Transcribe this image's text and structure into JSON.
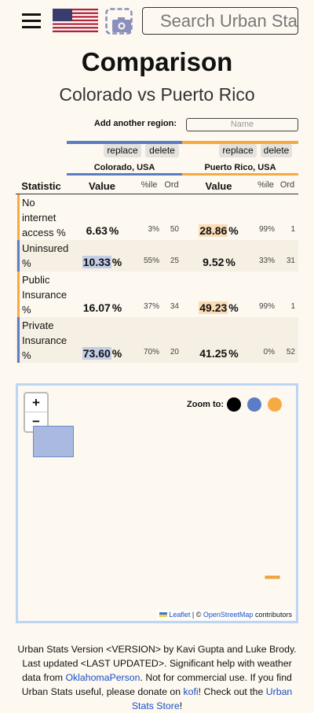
{
  "header": {
    "search_placeholder": "Search Urban Stats"
  },
  "title": "Comparison",
  "subtitle": "Colorado vs Puerto Rico",
  "add_region": {
    "label": "Add another region:",
    "placeholder": "Name"
  },
  "regions": [
    {
      "name": "Colorado, USA",
      "color": "#5a7dc5",
      "replace": "replace",
      "delete": "delete"
    },
    {
      "name": "Puerto Rico, USA",
      "color": "#f7aa41",
      "replace": "replace",
      "delete": "delete"
    }
  ],
  "table": {
    "headers": [
      "Statistic",
      "Value",
      "%ile",
      "Ord",
      "Value",
      "%ile",
      "Ord"
    ],
    "rows": [
      {
        "statistic": "No internet access %",
        "accent": "#f7aa41",
        "cells": [
          {
            "value": "6.63",
            "unit": "%",
            "percentile": "3%",
            "ordinal": "50"
          },
          {
            "value": "28.86",
            "unit": "%",
            "percentile": "99%",
            "ordinal": "1",
            "highlight": "#fbdcb5"
          }
        ]
      },
      {
        "statistic": "Uninsured %",
        "accent": "#5a7dc5",
        "cells": [
          {
            "value": "10.33",
            "unit": "%",
            "percentile": "55%",
            "ordinal": "25",
            "highlight": "#c3cde6"
          },
          {
            "value": "9.52",
            "unit": "%",
            "percentile": "33%",
            "ordinal": "31"
          }
        ]
      },
      {
        "statistic": "Public Insurance %",
        "accent": "#f7aa41",
        "cells": [
          {
            "value": "16.07",
            "unit": "%",
            "percentile": "37%",
            "ordinal": "34"
          },
          {
            "value": "49.23",
            "unit": "%",
            "percentile": "99%",
            "ordinal": "1",
            "highlight": "#fbdcb5"
          }
        ]
      },
      {
        "statistic": "Private Insurance %",
        "accent": "#5a7dc5",
        "cells": [
          {
            "value": "73.60",
            "unit": "%",
            "percentile": "70%",
            "ordinal": "20",
            "highlight": "#c3cde6"
          },
          {
            "value": "41.25",
            "unit": "%",
            "percentile": "0%",
            "ordinal": "52"
          }
        ]
      }
    ]
  },
  "map": {
    "zoom_in": "+",
    "zoom_out": "−",
    "zoom_to": "Zoom to:",
    "attribution": {
      "leaflet": "Leaflet",
      "sep": "| ©",
      "osm": "OpenStreetMap",
      "contributors": "contributors"
    }
  },
  "footer": {
    "t1": "Urban Stats Version <VERSION> by Kavi Gupta and Luke Brody. Last updated <LAST UPDATED>. Significant help with weather data from ",
    "l1": "OklahomaPerson",
    "t2": ". Not for commercial use. If you find Urban Stats useful, please donate on ",
    "l2": "kofi",
    "t3": "! Check out the ",
    "l3": "Urban Stats Store",
    "t4": "!"
  }
}
